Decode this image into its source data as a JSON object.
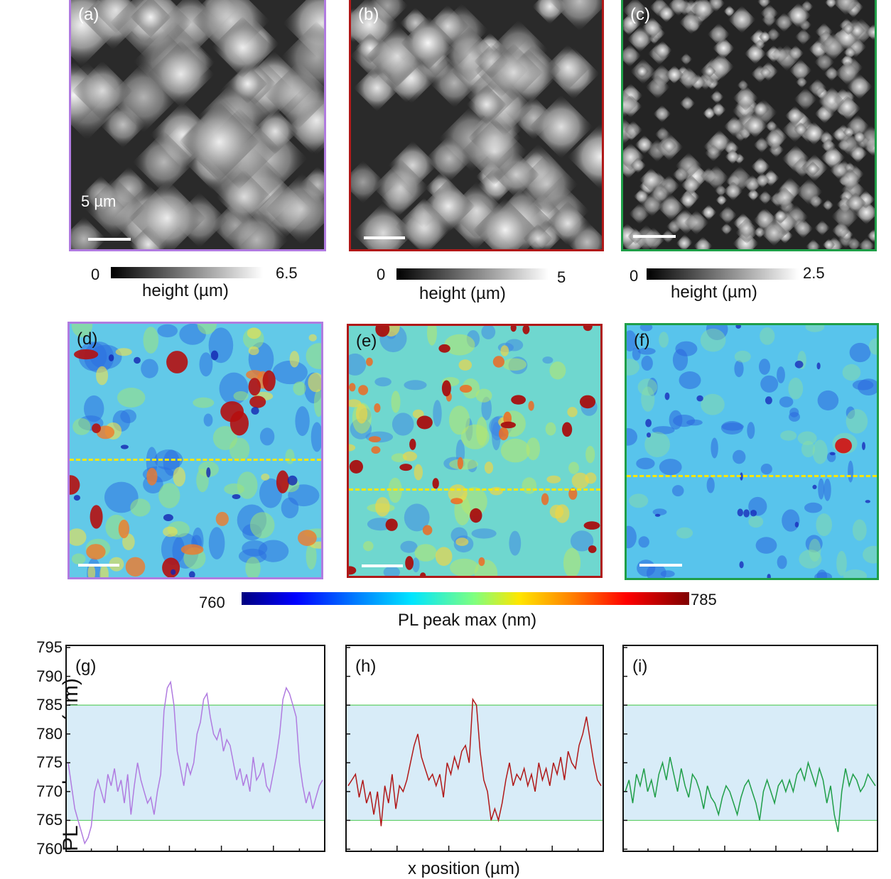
{
  "panels_top": [
    {
      "label": "(a)",
      "scale_text": "5 µm",
      "border": "#b07be0"
    },
    {
      "label": "(b)",
      "scale_text": "",
      "border": "#b01818"
    },
    {
      "label": "(c)",
      "scale_text": "",
      "border": "#1f9e48"
    }
  ],
  "height_colorbars": [
    {
      "min": "0",
      "max": "6.5",
      "title": "height (µm)"
    },
    {
      "min": "0",
      "max": "5",
      "title": "height (µm)"
    },
    {
      "min": "0",
      "max": "2.5",
      "title": "height (µm)"
    }
  ],
  "panels_mid": [
    {
      "label": "(d)",
      "border": "#b07be0"
    },
    {
      "label": "(e)",
      "border": "#b01818"
    },
    {
      "label": "(f)",
      "border": "#1f9e48"
    }
  ],
  "pl_colorbar": {
    "min": "760",
    "max": "785",
    "title": "PL peak max (nm)"
  },
  "colors": {
    "purple": "#b07be0",
    "red": "#b01818",
    "green": "#1f9e48",
    "band": "#d8ecf8",
    "dash": "#ffe600"
  },
  "chart_data": [
    {
      "type": "line",
      "label": "(g)",
      "ylabel": "PL peak max (nm)",
      "ylim": [
        760,
        795
      ],
      "yticks": [
        "760",
        "765",
        "770",
        "775",
        "780",
        "785",
        "790",
        "795"
      ],
      "band": [
        765,
        785
      ],
      "color": "#b07be0",
      "values": [
        775,
        771,
        767,
        765,
        763,
        761,
        762,
        764,
        770,
        772,
        770,
        768,
        773,
        771,
        774,
        770,
        772,
        768,
        773,
        766,
        771,
        775,
        772,
        770,
        768,
        769,
        766,
        770,
        773,
        784,
        788,
        789,
        785,
        777,
        774,
        771,
        775,
        773,
        775,
        780,
        782,
        786,
        787,
        783,
        780,
        779,
        781,
        777,
        779,
        778,
        775,
        772,
        774,
        771,
        773,
        770,
        776,
        772,
        773,
        775,
        771,
        770,
        773,
        776,
        780,
        786,
        788,
        787,
        785,
        783,
        775,
        771,
        768,
        770,
        767,
        769,
        771,
        772
      ]
    },
    {
      "type": "line",
      "label": "(h)",
      "ylim": [
        760,
        795
      ],
      "band": [
        765,
        785
      ],
      "color": "#b01818",
      "values": [
        771,
        772,
        773,
        769,
        772,
        768,
        770,
        766,
        770,
        764,
        771,
        768,
        773,
        767,
        771,
        770,
        772,
        775,
        778,
        780,
        776,
        774,
        772,
        773,
        771,
        773,
        769,
        775,
        773,
        776,
        774,
        777,
        778,
        775,
        786,
        785,
        777,
        772,
        770,
        765,
        767,
        765,
        768,
        772,
        775,
        771,
        773,
        772,
        774,
        771,
        773,
        770,
        775,
        772,
        774,
        771,
        775,
        773,
        776,
        772,
        777,
        775,
        774,
        778,
        780,
        783,
        779,
        775,
        772,
        771
      ]
    },
    {
      "type": "line",
      "label": "(i)",
      "ylim": [
        760,
        795
      ],
      "band": [
        765,
        785
      ],
      "color": "#1f9e48",
      "values": [
        770,
        772,
        768,
        773,
        771,
        774,
        770,
        772,
        769,
        773,
        775,
        772,
        776,
        773,
        770,
        774,
        771,
        769,
        773,
        772,
        770,
        767,
        771,
        769,
        768,
        766,
        769,
        771,
        770,
        768,
        766,
        769,
        771,
        772,
        770,
        768,
        765,
        770,
        772,
        770,
        768,
        771,
        772,
        770,
        772,
        770,
        773,
        774,
        772,
        775,
        773,
        771,
        774,
        772,
        768,
        771,
        766,
        763,
        770,
        774,
        771,
        773,
        772,
        770,
        771,
        773,
        772,
        771
      ]
    }
  ],
  "xaxis_title": "x position (µm)"
}
